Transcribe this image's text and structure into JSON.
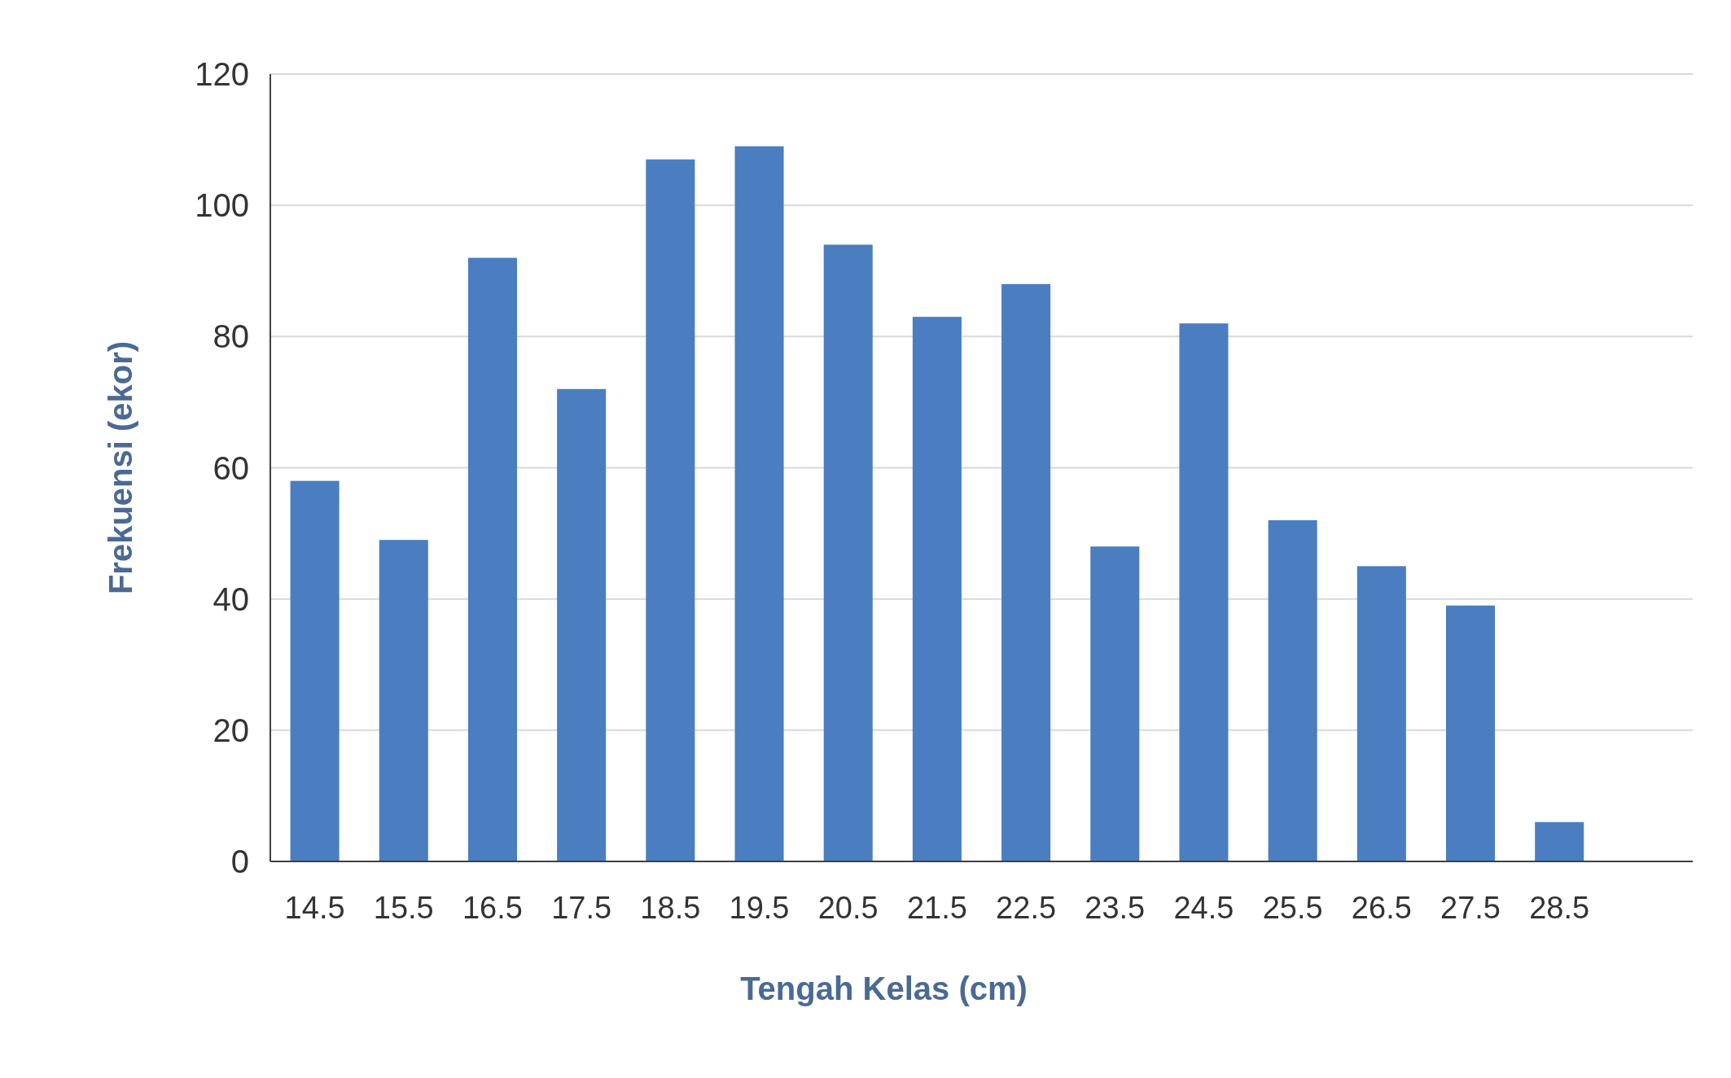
{
  "chart_data": {
    "type": "bar",
    "xlabel": "Tengah Kelas (cm)",
    "ylabel": "Frekuensi (ekor)",
    "categories": [
      "14.5",
      "15.5",
      "16.5",
      "17.5",
      "18.5",
      "19.5",
      "20.5",
      "21.5",
      "22.5",
      "23.5",
      "24.5",
      "25.5",
      "26.5",
      "27.5",
      "28.5",
      null
    ],
    "values": [
      58,
      49,
      92,
      72,
      107,
      109,
      94,
      83,
      88,
      48,
      82,
      52,
      45,
      39,
      6,
      null
    ],
    "color": "#4a7ec0",
    "ylim": [
      0,
      120
    ],
    "yticks": [
      0,
      20,
      40,
      60,
      80,
      100,
      120
    ],
    "grid": "y"
  }
}
